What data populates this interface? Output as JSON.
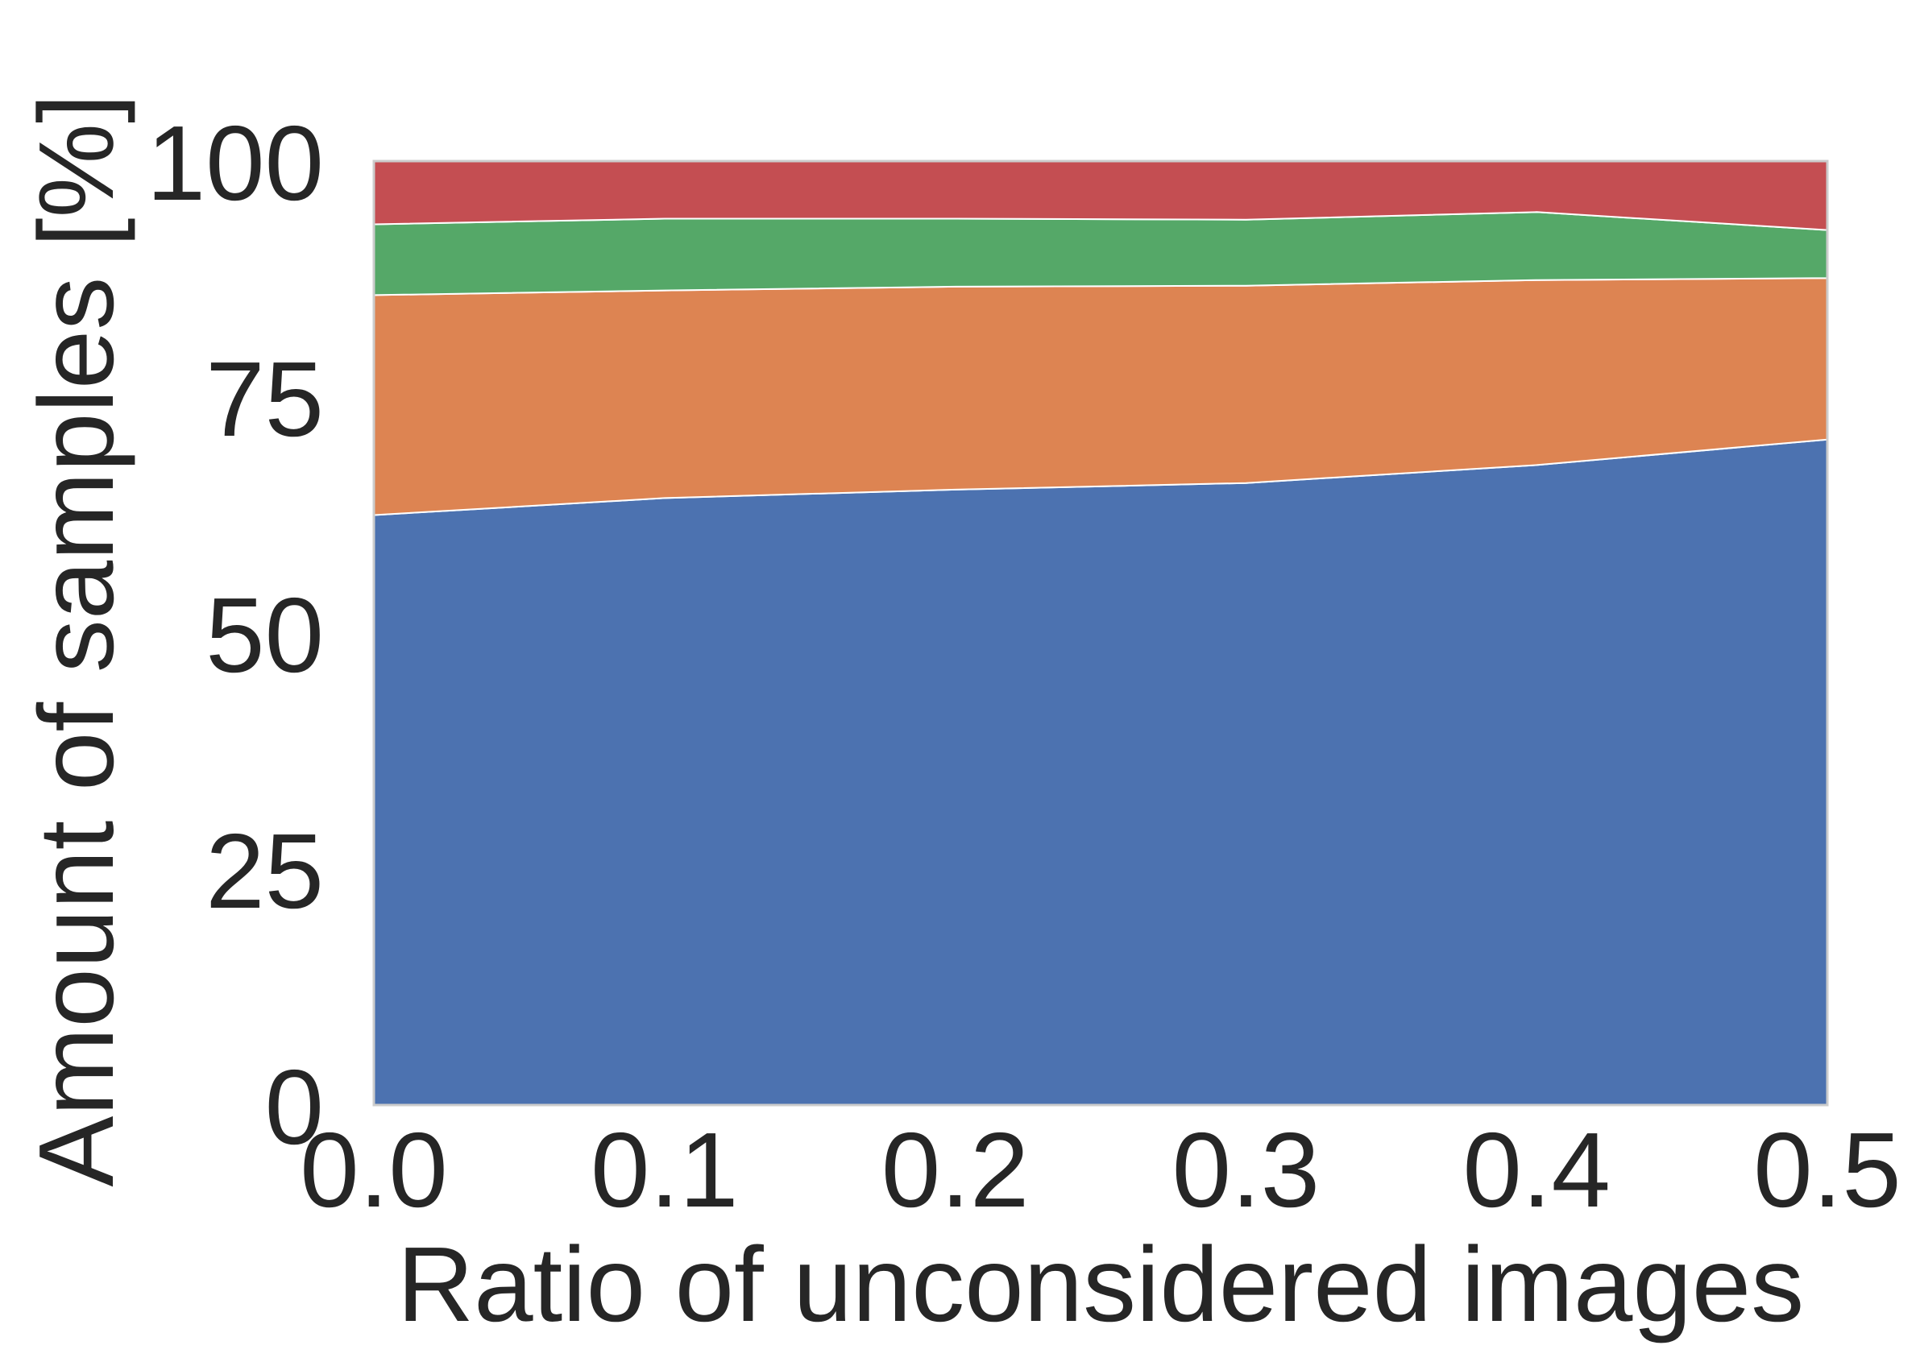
{
  "chart_data": {
    "type": "area",
    "stacked": true,
    "title": "",
    "xlabel": "Ratio of unconsidered images",
    "ylabel": "Amount of samples [%]",
    "x": [
      0.0,
      0.1,
      0.2,
      0.3,
      0.4,
      0.5
    ],
    "xticks": [
      "0.0",
      "0.1",
      "0.2",
      "0.3",
      "0.4",
      "0.5"
    ],
    "yticks": [
      "0",
      "25",
      "50",
      "75",
      "100"
    ],
    "xlim": [
      0.0,
      0.5
    ],
    "ylim": [
      0,
      100
    ],
    "grid": false,
    "legend": "none",
    "series": [
      {
        "color": "#4c72b0",
        "values": [
          62.5,
          64.3,
          65.2,
          65.9,
          67.8,
          70.5
        ]
      },
      {
        "color": "#dd8452",
        "values": [
          23.3,
          22.0,
          21.5,
          20.9,
          19.6,
          17.1
        ]
      },
      {
        "color": "#55a868",
        "values": [
          7.5,
          7.6,
          7.2,
          7.0,
          7.2,
          5.1
        ]
      },
      {
        "color": "#c44e52",
        "values": [
          6.7,
          6.1,
          6.1,
          6.2,
          5.4,
          7.3
        ]
      }
    ]
  }
}
